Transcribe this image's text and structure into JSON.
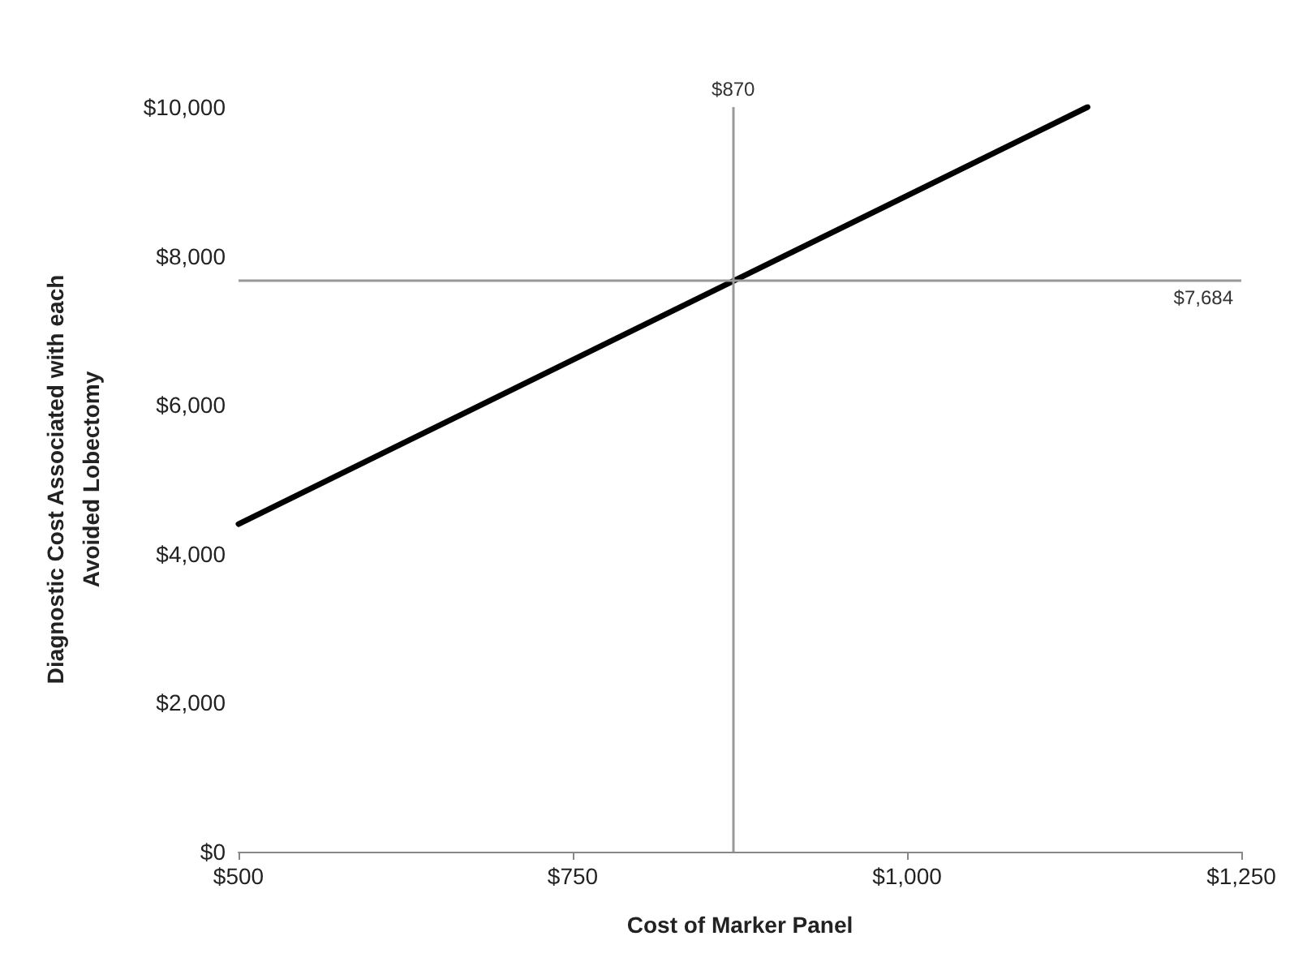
{
  "chart_data": {
    "type": "line",
    "xlabel": "Cost of Marker Panel",
    "ylabel": "Diagnostic Cost Associated with each\nAvoided Lobectomy",
    "series": [
      {
        "color": "#000000",
        "x": [
          500,
          1135
        ],
        "values": [
          4400,
          10000
        ]
      }
    ],
    "xlim": [
      500,
      1250
    ],
    "xticks": [
      {
        "value": 500,
        "label": "$500"
      },
      {
        "value": 750,
        "label": "$750"
      },
      {
        "value": 1000,
        "label": "$1,000"
      },
      {
        "value": 1250,
        "label": "$1,250"
      }
    ],
    "ylim": [
      0,
      10000
    ],
    "yticks": [
      {
        "value": 0,
        "label": "$0"
      },
      {
        "value": 2000,
        "label": "$2,000"
      },
      {
        "value": 4000,
        "label": "$4,000"
      },
      {
        "value": 6000,
        "label": "$6,000"
      },
      {
        "value": 8000,
        "label": "$8,000"
      },
      {
        "value": 10000,
        "label": "$10,000"
      }
    ],
    "ref_lines": [
      {
        "axis": "x",
        "value": 870,
        "label": "$870",
        "color": "#999999"
      },
      {
        "axis": "y",
        "value": 7684,
        "label": "$7,684",
        "color": "#999999"
      }
    ],
    "grid": false,
    "marker": "none",
    "line_style": "solid"
  }
}
